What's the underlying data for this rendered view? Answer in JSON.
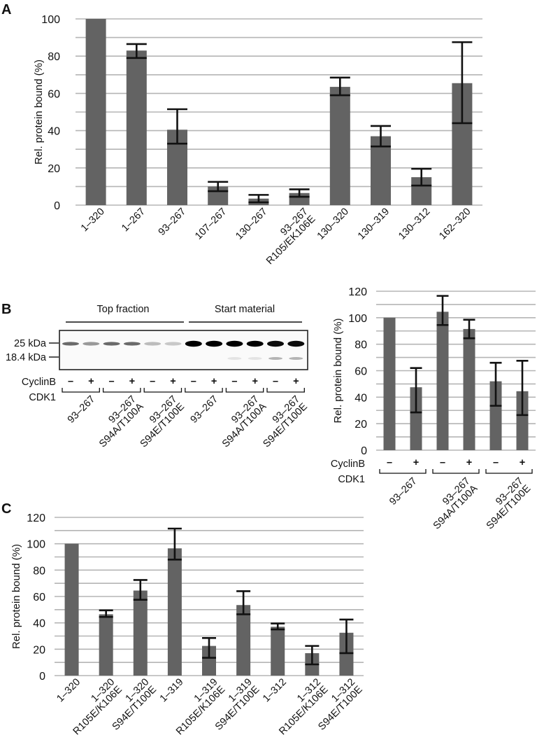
{
  "figure": {
    "panels": [
      "A",
      "B",
      "C"
    ]
  },
  "blot": {
    "group_labels": [
      "Top fraction",
      "Start material"
    ],
    "markers": [
      "25 kDa",
      "18.4 kDa"
    ],
    "row_labels": [
      "CyclinB",
      "CDK1"
    ],
    "signs": [
      "–",
      "+",
      "–",
      "+",
      "–",
      "+",
      "–",
      "+",
      "–",
      "+",
      "–",
      "+"
    ],
    "lane_groups": [
      [
        "93–267"
      ],
      [
        "93–267",
        "S94A/T100A"
      ],
      [
        "93–267",
        "S94E/T100E"
      ],
      [
        "93–267"
      ],
      [
        "93–267",
        "S94A/T100A"
      ],
      [
        "93–267",
        "S94E/T100E"
      ]
    ],
    "band_intensity_25kDa": [
      0.55,
      0.35,
      0.55,
      0.55,
      0.2,
      0.15,
      1.0,
      1.0,
      1.0,
      1.0,
      0.95,
      0.95
    ],
    "band_intensity_18kDa": [
      0,
      0,
      0,
      0,
      0,
      0,
      0,
      0,
      0.05,
      0.05,
      0.25,
      0.25
    ]
  },
  "chart_data": [
    {
      "panel": "A",
      "type": "bar",
      "title": "",
      "xlabel": "",
      "ylabel": "Rel. protein bound (%)",
      "ylim": [
        0,
        100
      ],
      "yticks": [
        0,
        20,
        40,
        60,
        80,
        100
      ],
      "grid": true,
      "categories": [
        [
          "1–320"
        ],
        [
          "1–267"
        ],
        [
          "93–267"
        ],
        [
          "107–267"
        ],
        [
          "130–267"
        ],
        [
          "93–267",
          "R105/EK106E"
        ],
        [
          "130–320"
        ],
        [
          "130–319"
        ],
        [
          "130–312"
        ],
        [
          "162–320"
        ]
      ],
      "values": [
        100,
        83,
        40.5,
        10,
        3.5,
        6.5,
        63.5,
        37,
        15,
        65.5
      ],
      "error_low": [
        null,
        79,
        33,
        7.5,
        1.5,
        4.5,
        59,
        31.5,
        10.5,
        44
      ],
      "error_high": [
        null,
        86.5,
        51.5,
        12.5,
        5.5,
        8.5,
        68.5,
        42.5,
        19.5,
        87.5
      ]
    },
    {
      "panel": "B",
      "type": "bar",
      "title": "",
      "xlabel": "",
      "ylabel": "Rel. protein bound (%)",
      "ylim": [
        0,
        120
      ],
      "yticks": [
        0,
        20,
        40,
        60,
        80,
        100,
        120
      ],
      "grid": true,
      "row_labels": [
        "CyclinB",
        "CDK1"
      ],
      "signs": [
        "–",
        "+",
        "–",
        "+",
        "–",
        "+"
      ],
      "groups": [
        [
          "93–267"
        ],
        [
          "93–267",
          "S94A/T100A"
        ],
        [
          "93–267",
          "S94E/T100E"
        ]
      ],
      "values": [
        100,
        47.5,
        104.5,
        91.5,
        52,
        44.5
      ],
      "error_low": [
        null,
        28.5,
        94.5,
        84.5,
        33.5,
        26.5
      ],
      "error_high": [
        null,
        62,
        116.5,
        98.5,
        66,
        67.5
      ]
    },
    {
      "panel": "C",
      "type": "bar",
      "title": "",
      "xlabel": "",
      "ylabel": "Rel. protein bound (%)",
      "ylim": [
        0,
        120
      ],
      "yticks": [
        0,
        20,
        40,
        60,
        80,
        100,
        120
      ],
      "grid": true,
      "categories": [
        [
          "1–320"
        ],
        [
          "1–320",
          "R105E/K106E"
        ],
        [
          "1–320",
          "S94E/T100E"
        ],
        [
          "1–319"
        ],
        [
          "1–319",
          "R105E/K106E"
        ],
        [
          "1–319",
          "S94E/T100E"
        ],
        [
          "1–312"
        ],
        [
          "1–312",
          "R105E/K106E"
        ],
        [
          "1–312",
          "S94E/T100E"
        ]
      ],
      "values": [
        100,
        46.5,
        64.5,
        96.5,
        22.5,
        53.5,
        37,
        17,
        32.5
      ],
      "error_low": [
        null,
        44.5,
        57.5,
        88,
        13.5,
        46.5,
        35,
        8.5,
        17
      ],
      "error_high": [
        null,
        49.5,
        72.5,
        111.5,
        28.5,
        64,
        39.5,
        22.5,
        42.5
      ]
    }
  ]
}
